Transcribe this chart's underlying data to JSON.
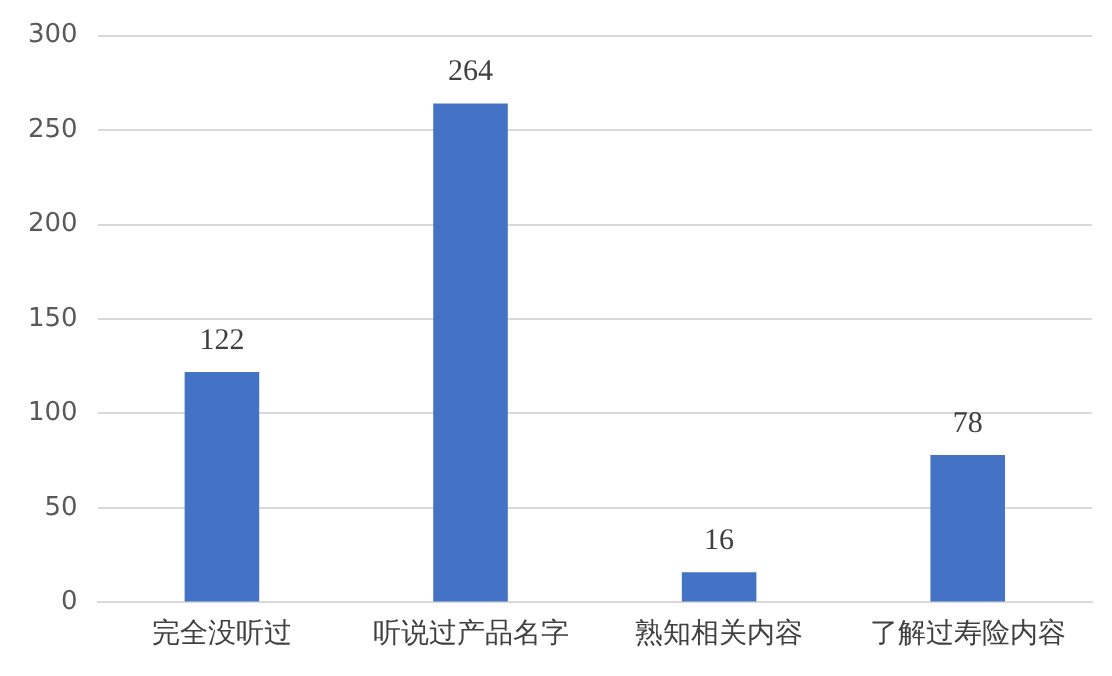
{
  "chart_data": {
    "type": "bar",
    "categories": [
      "完全没听过",
      "听说过产品名字",
      "熟知相关内容",
      "了解过寿险内容"
    ],
    "values": [
      122,
      264,
      16,
      78
    ],
    "color": "#4472c4",
    "ylim": [
      0,
      300
    ],
    "yticks": [
      0,
      50,
      100,
      150,
      200,
      250,
      300
    ],
    "grid": "y",
    "data_labels": true
  }
}
